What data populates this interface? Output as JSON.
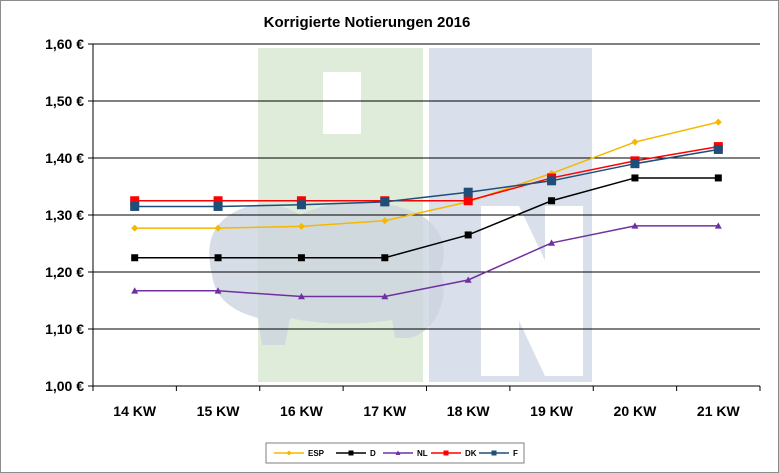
{
  "chart_data": {
    "type": "line",
    "title": "Korrigierte Notierungen 2016",
    "xlabel": "",
    "ylabel": "",
    "categories": [
      "14 KW",
      "15 KW",
      "16 KW",
      "17 KW",
      "18 KW",
      "19 KW",
      "20 KW",
      "21 KW"
    ],
    "ylim": [
      1.0,
      1.6
    ],
    "yticks": [
      "1,00 €",
      "1,10 €",
      "1,20 €",
      "1,30 €",
      "1,40 €",
      "1,50 €",
      "1,60 €"
    ],
    "grid": true,
    "legend_position": "bottom",
    "series": [
      {
        "name": "ESP",
        "color": "#f5b800",
        "marker": "diamond",
        "values": [
          1.277,
          1.277,
          1.28,
          1.29,
          1.323,
          1.373,
          1.428,
          1.463
        ]
      },
      {
        "name": "D",
        "color": "#000000",
        "marker": "square",
        "values": [
          1.225,
          1.225,
          1.225,
          1.225,
          1.265,
          1.325,
          1.365,
          1.365
        ]
      },
      {
        "name": "NL",
        "color": "#7030a0",
        "marker": "triangle",
        "values": [
          1.167,
          1.167,
          1.157,
          1.157,
          1.186,
          1.251,
          1.281,
          1.281
        ]
      },
      {
        "name": "DK",
        "color": "#ff0000",
        "marker": "square",
        "values": [
          1.325,
          1.325,
          1.325,
          1.325,
          1.325,
          1.365,
          1.395,
          1.42
        ]
      },
      {
        "name": "F",
        "color": "#1f4e79",
        "marker": "square",
        "values": [
          1.315,
          1.315,
          1.318,
          1.323,
          1.34,
          1.36,
          1.39,
          1.415
        ]
      }
    ]
  }
}
